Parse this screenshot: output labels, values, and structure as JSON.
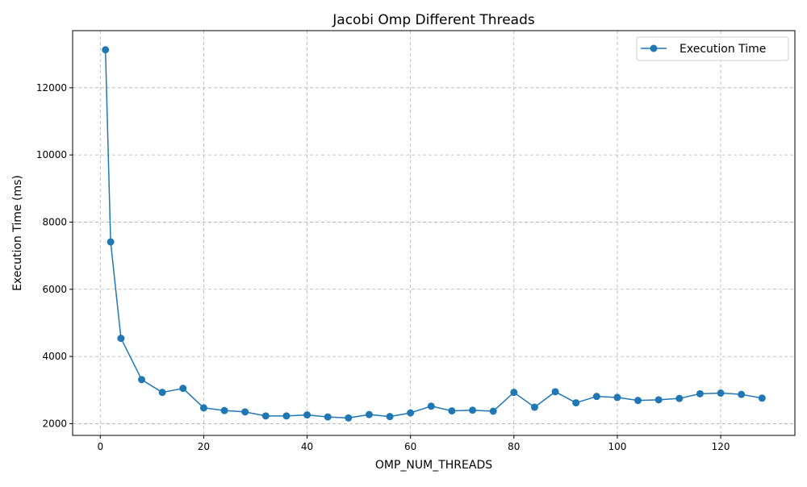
{
  "chart_data": {
    "type": "line",
    "title": "Jacobi Omp Different Threads",
    "xlabel": "OMP_NUM_THREADS",
    "ylabel": "Execution Time (ms)",
    "xlim": [
      -5.35,
      134.35
    ],
    "ylim": [
      1650,
      13700
    ],
    "xticks": [
      0,
      20,
      40,
      60,
      80,
      100,
      120
    ],
    "yticks": [
      2000,
      4000,
      6000,
      8000,
      10000,
      12000
    ],
    "grid": true,
    "legend_position": "top-right",
    "series": [
      {
        "name": "Execution Time",
        "color": "#1f77b4",
        "marker": "circle",
        "x": [
          1,
          2,
          4,
          8,
          12,
          16,
          20,
          24,
          28,
          32,
          36,
          40,
          44,
          48,
          52,
          56,
          60,
          64,
          68,
          72,
          76,
          80,
          84,
          88,
          92,
          96,
          100,
          104,
          108,
          112,
          116,
          120,
          124,
          128
        ],
        "y": [
          13130,
          7410,
          4540,
          3310,
          2930,
          3050,
          2470,
          2390,
          2350,
          2230,
          2230,
          2260,
          2200,
          2170,
          2270,
          2210,
          2320,
          2520,
          2380,
          2400,
          2370,
          2930,
          2490,
          2950,
          2620,
          2810,
          2780,
          2690,
          2710,
          2750,
          2890,
          2910,
          2870,
          2760
        ]
      }
    ]
  }
}
